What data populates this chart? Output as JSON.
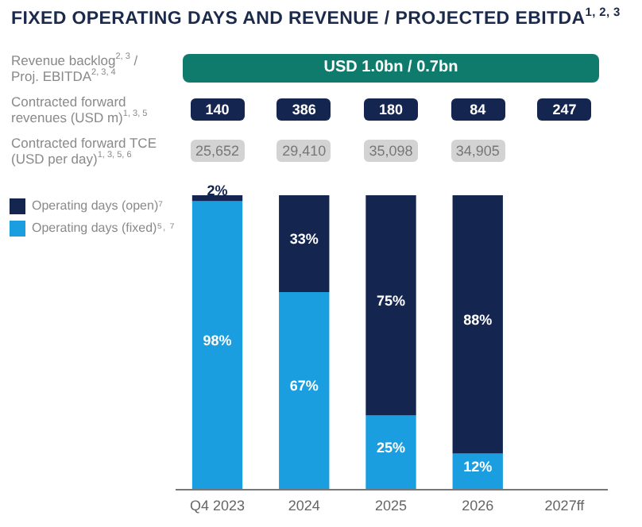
{
  "chart_data": {
    "type": "bar",
    "stacked": true,
    "title": "FIXED OPERATING DAYS AND REVENUE / PROJECTED EBITDA$^{1, 2, 3}$",
    "categories": [
      "Q4 2023",
      "2024",
      "2025",
      "2026",
      "2027ff"
    ],
    "series": [
      {
        "name": "Operating days (fixed)⁵˒ ⁷",
        "color": "#1a9ee0",
        "values": [
          98,
          67,
          25,
          12,
          null
        ],
        "value_labels": [
          "98%",
          "67%",
          "25%",
          "12%",
          null
        ]
      },
      {
        "name": "Operating days (open)⁷",
        "color": "#14254f",
        "values": [
          2,
          33,
          75,
          88,
          null
        ],
        "value_labels": [
          "2%",
          "33%",
          "75%",
          "88%",
          null
        ]
      }
    ],
    "legend": "top left",
    "grid": false,
    "annotations": [
      "Revenue backlog$^{2, 3}$ / Proj. EBITDA$^{2, 3, 4}$",
      "USD 1.0bn / 0.7bn",
      "Contracted forward revenues (USD m)$^{1, 3, 5}$",
      "140",
      "386",
      "180",
      "84",
      "247",
      "Contracted forward TCE (USD per day)$^{1, 3, 5, 6}$",
      "25,652",
      "29,410",
      "35,098",
      "34,905"
    ]
  }
}
